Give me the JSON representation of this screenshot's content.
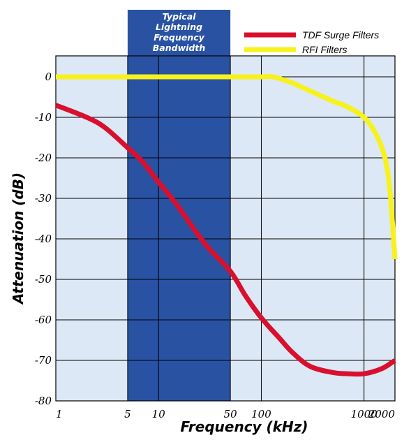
{
  "chart_data": {
    "type": "line",
    "xscale": "log",
    "xlim": [
      1,
      2000
    ],
    "ylim": [
      -80,
      0
    ],
    "grid": true,
    "legend_position": "top-right",
    "xlabel": "Frequency (kHz)",
    "ylabel": "Attenuation (dB)",
    "x_ticks": [
      {
        "value": 1,
        "label": "1"
      },
      {
        "value": 5,
        "label": "5"
      },
      {
        "value": 10,
        "label": "10"
      },
      {
        "value": 50,
        "label": "50"
      },
      {
        "value": 100,
        "label": "100"
      },
      {
        "value": 1000,
        "label": "1000"
      },
      {
        "value": 2000,
        "label": "2000"
      }
    ],
    "y_ticks": [
      {
        "value": 0,
        "label": "0"
      },
      {
        "value": -10,
        "label": "-10"
      },
      {
        "value": -20,
        "label": "-20"
      },
      {
        "value": -30,
        "label": "-30"
      },
      {
        "value": -40,
        "label": "-40"
      },
      {
        "value": -50,
        "label": "-50"
      },
      {
        "value": -60,
        "label": "-60"
      },
      {
        "value": -70,
        "label": "-70"
      },
      {
        "value": -80,
        "label": "-80"
      }
    ],
    "highlight_band": {
      "x_range": [
        5,
        50
      ],
      "label_lines": [
        "Typical",
        "Lightning",
        "Frequency",
        "Bandwidth"
      ],
      "color": "#2a52a3"
    },
    "series": [
      {
        "name": "TDF Surge Filters",
        "color": "#d8102e",
        "x": [
          1,
          2,
          3,
          5,
          7,
          10,
          15,
          20,
          30,
          50,
          70,
          100,
          150,
          200,
          300,
          500,
          700,
          1000,
          1500,
          2000
        ],
        "y": [
          -7,
          -10,
          -12.5,
          -17.5,
          -21,
          -26,
          -31.5,
          -36,
          -42,
          -48,
          -54,
          -59.5,
          -64.5,
          -68,
          -71.5,
          -73,
          -73.3,
          -73.3,
          -72,
          -70
        ]
      },
      {
        "name": "RFI Filters",
        "color": "#f7f21b",
        "x": [
          1,
          2,
          5,
          10,
          20,
          50,
          100,
          130,
          200,
          300,
          500,
          700,
          1000,
          1300,
          1600,
          1800,
          2000
        ],
        "y": [
          0,
          0,
          0,
          0,
          0,
          0,
          0,
          0,
          -1.5,
          -3.5,
          -6,
          -7.5,
          -10,
          -14,
          -20,
          -29,
          -45
        ]
      }
    ],
    "colors": {
      "plot_background": "#dce8f5",
      "grid": "#000000"
    }
  }
}
